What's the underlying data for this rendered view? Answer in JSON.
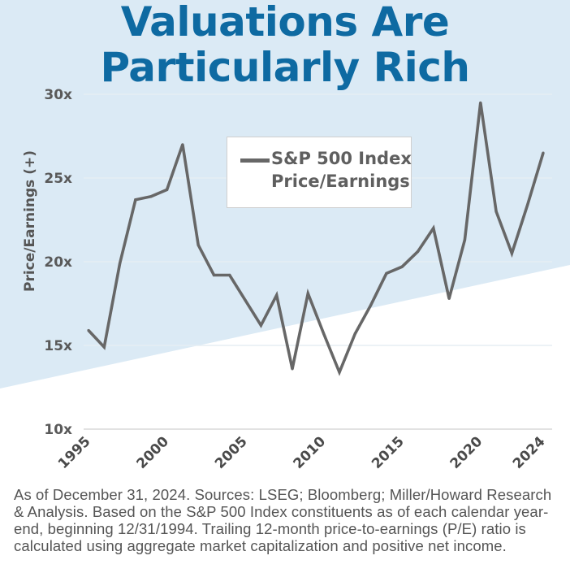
{
  "title": {
    "line1": "Valuations Are",
    "line2": "Particularly Rich"
  },
  "colors": {
    "title": "#0e6aa2",
    "background_band": "#dbeaf5",
    "line": "#676767",
    "gridline": "#e6eef3"
  },
  "legend": {
    "line1": "S&P 500 Index",
    "line2": "Price/Earnings"
  },
  "footnote": "As of December 31, 2024. Sources: LSEG; Bloomberg; Miller/Howard Research & Analysis.  Based on the S&P 500 Index constituents as of each calendar year-end, beginning 12/31/1994. Trailing 12-month price-to-earnings (P/E) ratio is calculated using aggregate market capitalization and positive net income.",
  "chart_data": {
    "type": "line",
    "title": "Valuations Are Particularly Rich",
    "xlabel": "",
    "ylabel": "Price/Earnings (+)",
    "x": [
      1995,
      1996,
      1997,
      1998,
      1999,
      2000,
      2001,
      2002,
      2003,
      2004,
      2005,
      2006,
      2007,
      2008,
      2009,
      2010,
      2011,
      2012,
      2013,
      2014,
      2015,
      2016,
      2017,
      2018,
      2019,
      2020,
      2021,
      2022,
      2023,
      2024
    ],
    "series": [
      {
        "name": "S&P 500 Index Price/Earnings",
        "values": [
          15.9,
          14.9,
          19.9,
          23.7,
          23.9,
          24.3,
          27.0,
          21.0,
          19.2,
          19.2,
          17.7,
          16.2,
          18.0,
          13.6,
          18.1,
          15.7,
          13.4,
          15.7,
          17.4,
          19.3,
          19.7,
          20.6,
          22.0,
          17.8,
          21.3,
          29.5,
          23.0,
          20.5,
          23.4,
          26.5
        ]
      }
    ],
    "xticks": [
      1995,
      2000,
      2005,
      2010,
      2015,
      2020,
      2024
    ],
    "xtick_labels": [
      "1995",
      "2000",
      "2005",
      "2010",
      "2015",
      "2020",
      "2024"
    ],
    "yticks": [
      10,
      15,
      20,
      25,
      30
    ],
    "ytick_labels": [
      "10x",
      "15x",
      "20x",
      "25x",
      "30x"
    ],
    "ylim": [
      10,
      30
    ],
    "xlim": [
      1995,
      2024
    ],
    "grid": true,
    "legend_position": "top-center"
  }
}
